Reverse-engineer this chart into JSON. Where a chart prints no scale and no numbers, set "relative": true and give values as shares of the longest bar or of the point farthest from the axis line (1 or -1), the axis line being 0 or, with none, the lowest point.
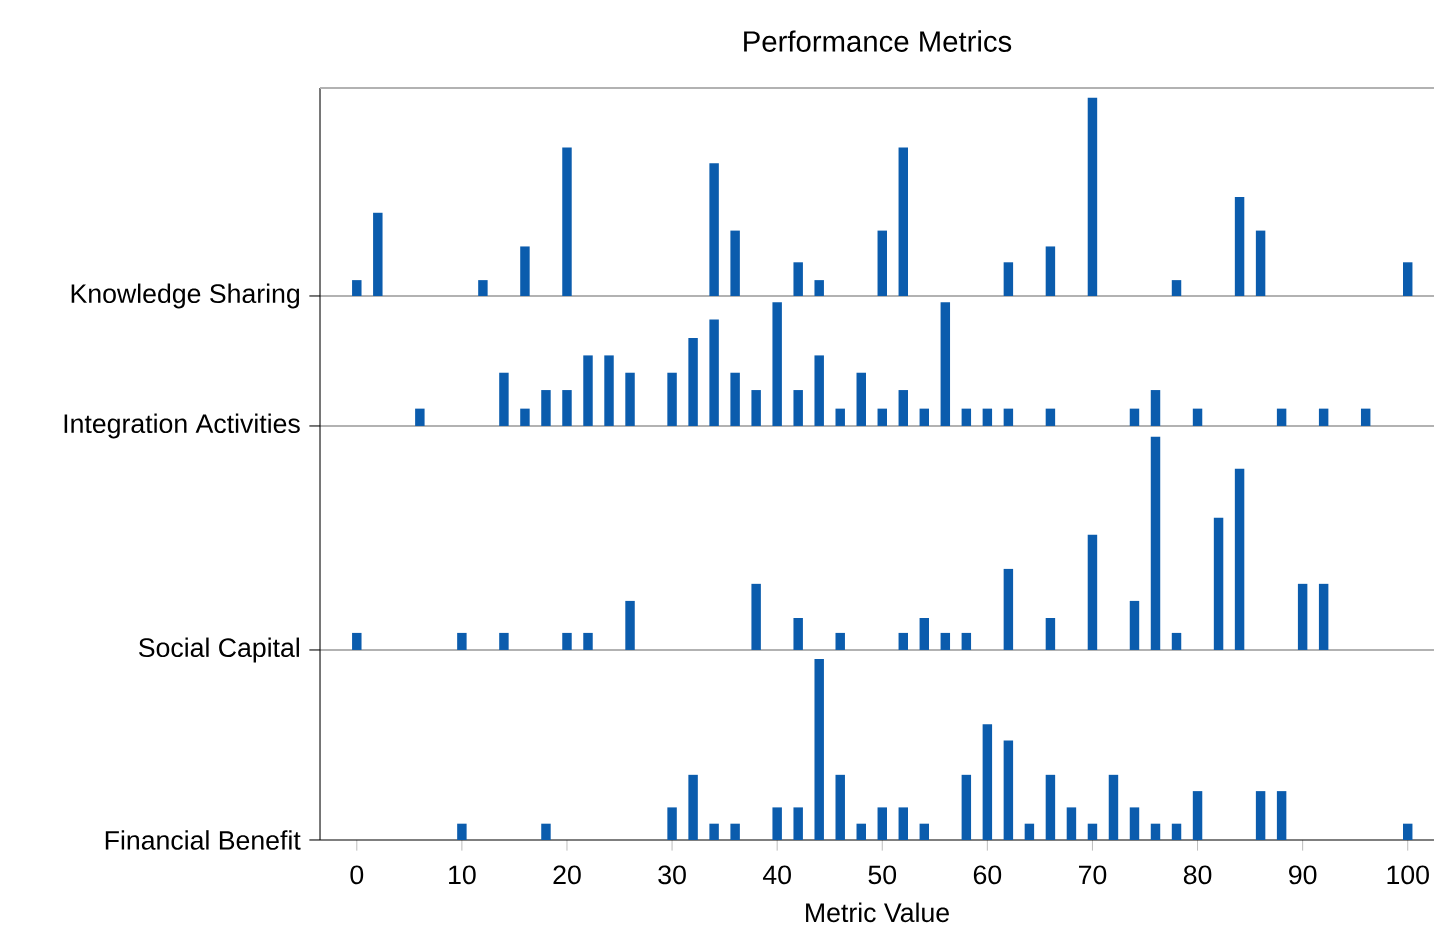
{
  "chart_data": [
    {
      "type": "bar",
      "title": "Performance Metrics",
      "ylabel": "Knowledge Sharing",
      "relative": true,
      "color": "#0b5cad",
      "tick_labels": false,
      "xlim": [
        -3.5,
        102.5
      ],
      "xticks": [
        0,
        10,
        20,
        30,
        40,
        50,
        60,
        70,
        80,
        90,
        100
      ],
      "x": [
        0,
        2,
        12,
        16,
        20,
        34,
        36,
        42,
        44,
        50,
        52,
        62,
        66,
        70,
        78,
        84,
        86,
        100
      ],
      "values": [
        0.08,
        0.42,
        0.08,
        0.25,
        0.75,
        0.67,
        0.33,
        0.17,
        0.08,
        0.33,
        0.75,
        0.17,
        0.25,
        1,
        0.08,
        0.5,
        0.33,
        0.17
      ]
    },
    {
      "type": "bar",
      "ylabel": "Integration Activities",
      "relative": true,
      "color": "#0b5cad",
      "tick_labels": false,
      "xlim": [
        -3.5,
        102.5
      ],
      "xticks": [
        0,
        10,
        20,
        30,
        40,
        50,
        60,
        70,
        80,
        90,
        100
      ],
      "x": [
        6,
        14,
        16,
        18,
        20,
        22,
        24,
        26,
        30,
        32,
        34,
        36,
        38,
        40,
        42,
        44,
        46,
        48,
        50,
        52,
        54,
        56,
        58,
        60,
        62,
        66,
        74,
        76,
        80,
        88,
        92,
        96
      ],
      "values": [
        0.14,
        0.43,
        0.14,
        0.29,
        0.29,
        0.57,
        0.57,
        0.43,
        0.43,
        0.71,
        0.86,
        0.43,
        0.29,
        1,
        0.29,
        0.57,
        0.14,
        0.43,
        0.14,
        0.29,
        0.14,
        1,
        0.14,
        0.14,
        0.14,
        0.14,
        0.14,
        0.29,
        0.14,
        0.14,
        0.14,
        0.14
      ]
    },
    {
      "type": "bar",
      "ylabel": "Social Capital",
      "relative": true,
      "color": "#0b5cad",
      "tick_labels": false,
      "xlim": [
        -3.5,
        102.5
      ],
      "xticks": [
        0,
        10,
        20,
        30,
        40,
        50,
        60,
        70,
        80,
        90,
        100
      ],
      "x": [
        0,
        10,
        14,
        20,
        22,
        26,
        38,
        42,
        46,
        52,
        54,
        56,
        58,
        62,
        66,
        70,
        74,
        76,
        78,
        82,
        84,
        90,
        92
      ],
      "values": [
        0.08,
        0.08,
        0.08,
        0.08,
        0.08,
        0.23,
        0.31,
        0.15,
        0.08,
        0.08,
        0.15,
        0.08,
        0.08,
        0.38,
        0.15,
        0.54,
        0.23,
        1,
        0.08,
        0.62,
        0.85,
        0.31,
        0.31
      ]
    },
    {
      "type": "bar",
      "ylabel": "Financial Benefit",
      "xlabel": "Metric Value",
      "relative": true,
      "color": "#0b5cad",
      "tick_labels": "x",
      "xlim": [
        -3.5,
        102.5
      ],
      "xticks": [
        0,
        10,
        20,
        30,
        40,
        50,
        60,
        70,
        80,
        90,
        100
      ],
      "x": [
        10,
        18,
        30,
        32,
        34,
        36,
        40,
        42,
        44,
        46,
        48,
        50,
        52,
        54,
        58,
        60,
        62,
        64,
        66,
        68,
        70,
        72,
        74,
        76,
        78,
        80,
        86,
        88,
        100
      ],
      "values": [
        0.09,
        0.09,
        0.18,
        0.36,
        0.09,
        0.09,
        0.18,
        0.18,
        1,
        0.36,
        0.09,
        0.18,
        0.18,
        0.09,
        0.36,
        0.64,
        0.55,
        0.09,
        0.36,
        0.18,
        0.09,
        0.36,
        0.18,
        0.09,
        0.09,
        0.27,
        0.27,
        0.27,
        0.09
      ]
    }
  ]
}
